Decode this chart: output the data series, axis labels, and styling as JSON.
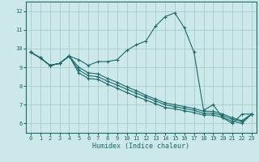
{
  "xlabel": "Humidex (Indice chaleur)",
  "xlim": [
    -0.5,
    23.5
  ],
  "ylim": [
    5.5,
    12.5
  ],
  "yticks": [
    6,
    7,
    8,
    9,
    10,
    11,
    12
  ],
  "xticks": [
    0,
    1,
    2,
    3,
    4,
    5,
    6,
    7,
    8,
    9,
    10,
    11,
    12,
    13,
    14,
    15,
    16,
    17,
    18,
    19,
    20,
    21,
    22,
    23
  ],
  "background_color": "#cce8e8",
  "line_color": "#1a6b6b",
  "grid_color": "#a0c8c8",
  "lines": [
    [
      9.8,
      9.5,
      9.1,
      9.2,
      9.6,
      9.4,
      9.1,
      9.3,
      9.3,
      9.4,
      9.9,
      10.2,
      10.4,
      11.2,
      11.7,
      11.9,
      11.1,
      9.8,
      6.7,
      7.0,
      6.3,
      6.0,
      6.5,
      6.5
    ],
    [
      9.8,
      9.5,
      9.1,
      9.2,
      9.6,
      9.0,
      8.7,
      8.65,
      8.4,
      8.2,
      7.95,
      7.75,
      7.5,
      7.3,
      7.1,
      7.0,
      6.9,
      6.8,
      6.65,
      6.65,
      6.5,
      6.3,
      6.15,
      6.5
    ],
    [
      9.8,
      9.5,
      9.1,
      9.2,
      9.6,
      8.85,
      8.55,
      8.5,
      8.25,
      8.05,
      7.82,
      7.62,
      7.4,
      7.2,
      7.0,
      6.9,
      6.8,
      6.7,
      6.55,
      6.55,
      6.42,
      6.22,
      6.1,
      6.5
    ],
    [
      9.8,
      9.5,
      9.1,
      9.2,
      9.6,
      8.7,
      8.4,
      8.35,
      8.1,
      7.88,
      7.65,
      7.45,
      7.25,
      7.05,
      6.85,
      6.78,
      6.68,
      6.58,
      6.45,
      6.45,
      6.32,
      6.12,
      6.0,
      6.5
    ]
  ]
}
